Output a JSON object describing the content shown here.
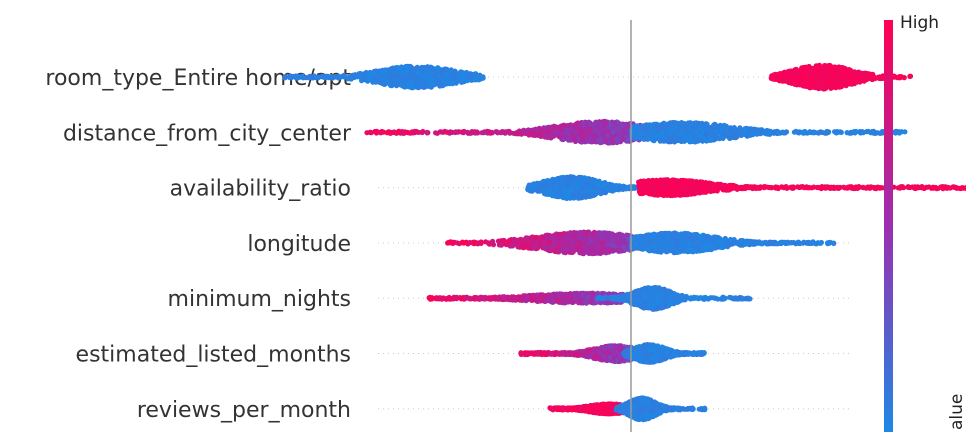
{
  "chart_data": {
    "type": "scatter",
    "subtype": "beeswarm",
    "title": "",
    "xlabel": "",
    "xlim": [
      -1.0,
      1.0
    ],
    "zero_line": 0,
    "grid": false,
    "color_scale": {
      "low_color": "#1e88e5",
      "mid_color": "#9b2fb0",
      "high_color": "#ff0052",
      "high_label": "High",
      "axis_label": "alue"
    },
    "features": [
      {
        "name": "room_type_Entire home/apt",
        "range": [
          -0.95,
          0.76
        ],
        "groups": [
          {
            "center": -0.58,
            "spread": 0.085,
            "min": -0.95,
            "max": -0.4,
            "color": "low",
            "height": 22
          },
          {
            "center": 0.52,
            "spread": 0.065,
            "min": 0.38,
            "max": 0.76,
            "color": "high",
            "height": 24
          }
        ]
      },
      {
        "name": "distance_from_city_center",
        "range": [
          -0.72,
          0.75
        ],
        "groups": [
          {
            "center": -0.08,
            "spread": 0.1,
            "min": -0.72,
            "max": 0.05,
            "color": "mix",
            "height": 22
          },
          {
            "center": 0.14,
            "spread": 0.11,
            "min": 0.0,
            "max": 0.75,
            "color": "low",
            "height": 20
          }
        ]
      },
      {
        "name": "availability_ratio",
        "range": [
          -0.28,
          0.92
        ],
        "groups": [
          {
            "center": -0.16,
            "spread": 0.06,
            "min": -0.28,
            "max": 0.02,
            "color": "low",
            "height": 22
          },
          {
            "center": 0.1,
            "spread": 0.09,
            "min": 0.02,
            "max": 0.92,
            "color": "high",
            "height": 16
          }
        ]
      },
      {
        "name": "longitude",
        "range": [
          -0.5,
          0.55
        ],
        "groups": [
          {
            "center": -0.12,
            "spread": 0.11,
            "min": -0.5,
            "max": 0.06,
            "color": "mix",
            "height": 22
          },
          {
            "center": 0.12,
            "spread": 0.09,
            "min": 0.0,
            "max": 0.55,
            "color": "low",
            "height": 20
          }
        ]
      },
      {
        "name": "minimum_nights",
        "range": [
          -0.55,
          0.33
        ],
        "groups": [
          {
            "center": -0.12,
            "spread": 0.12,
            "min": -0.55,
            "max": -0.02,
            "color": "mix",
            "height": 10
          },
          {
            "center": 0.06,
            "spread": 0.04,
            "min": -0.1,
            "max": 0.33,
            "color": "low",
            "height": 22
          }
        ]
      },
      {
        "name": "estimated_listed_months",
        "range": [
          -0.3,
          0.2
        ],
        "groups": [
          {
            "center": -0.04,
            "spread": 0.05,
            "min": -0.3,
            "max": 0.0,
            "color": "mix",
            "height": 16
          },
          {
            "center": 0.05,
            "spread": 0.035,
            "min": -0.02,
            "max": 0.2,
            "color": "low",
            "height": 18
          }
        ]
      },
      {
        "name": "reviews_per_month",
        "range": [
          -0.22,
          0.2
        ],
        "groups": [
          {
            "center": -0.06,
            "spread": 0.045,
            "min": -0.22,
            "max": 0.0,
            "color": "high",
            "height": 10
          },
          {
            "center": 0.03,
            "spread": 0.03,
            "min": -0.04,
            "max": 0.2,
            "color": "low",
            "height": 22
          }
        ]
      }
    ]
  }
}
